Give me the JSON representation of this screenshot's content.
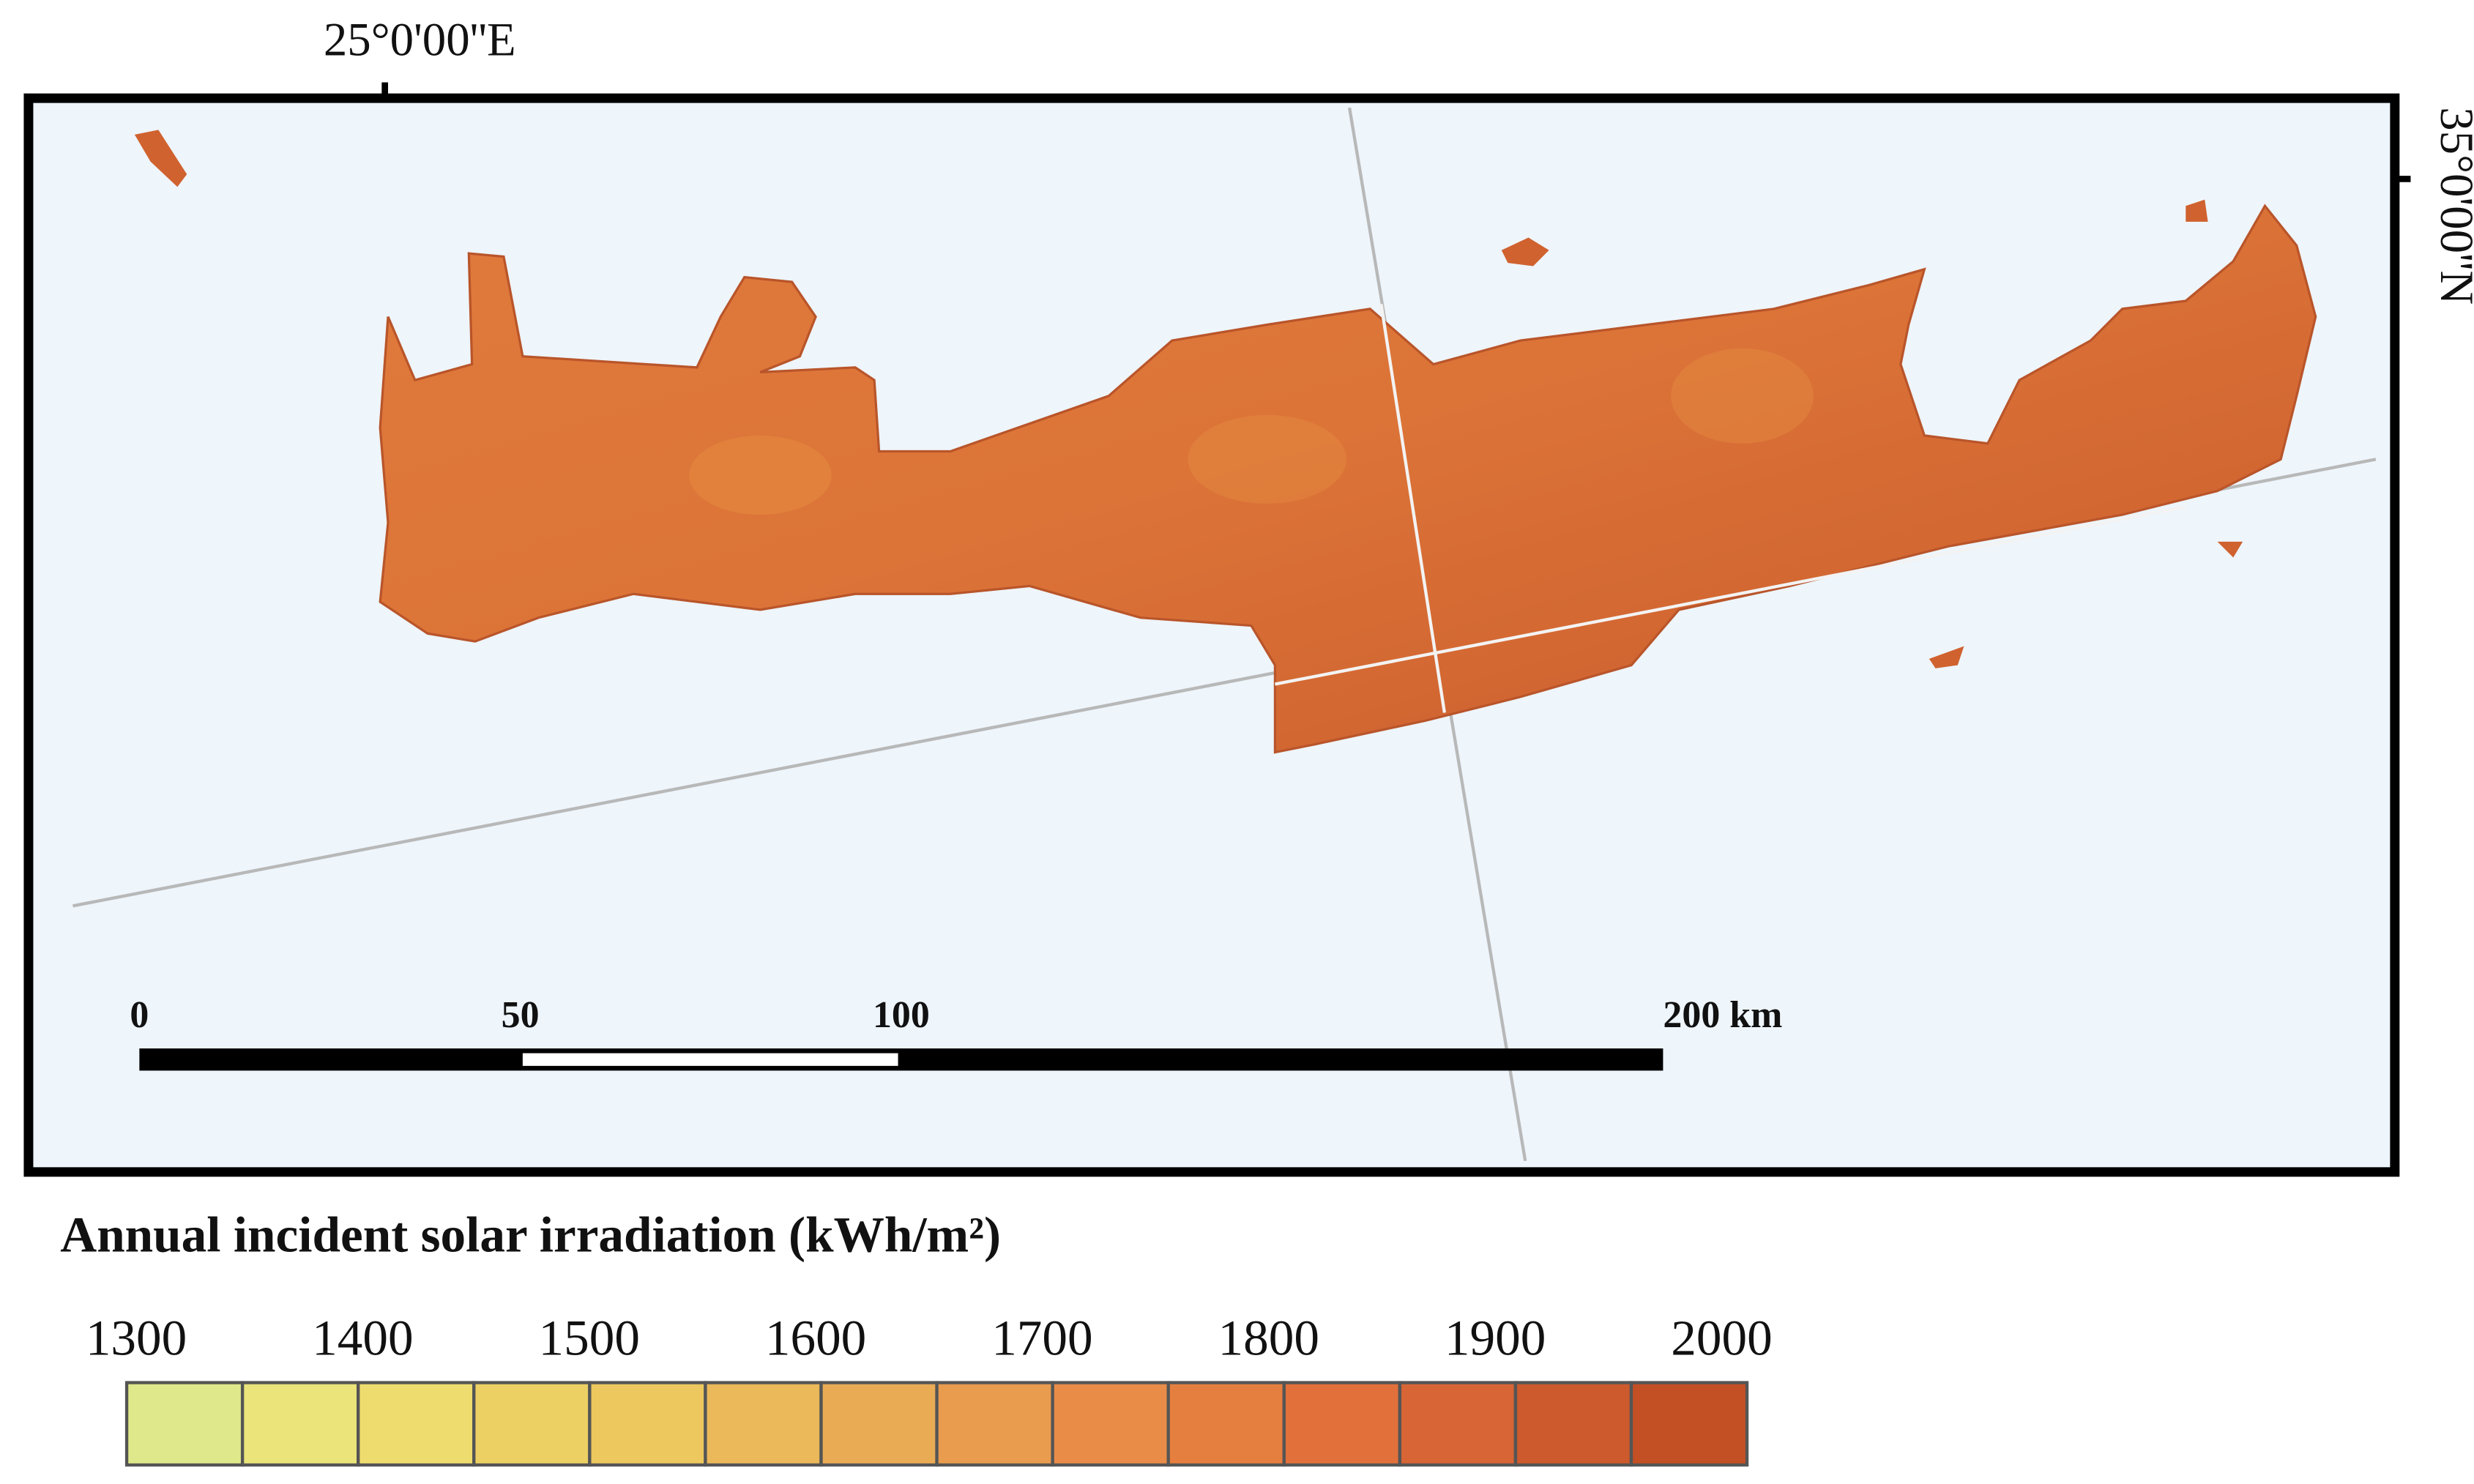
{
  "map": {
    "longitude_label": "25°0'00''E",
    "latitude_label": "35°0'00''N",
    "scale_bar": {
      "ticks": [
        0,
        50,
        100,
        {
          "value": 200,
          "label": "200 km"
        }
      ]
    },
    "legend": {
      "title": "Annual incident solar irradiation (kWh/m²)",
      "ticks": [
        1300,
        1400,
        1500,
        1600,
        1700,
        1800,
        1900,
        2000
      ],
      "colors": [
        "#dfe88a",
        "#eae47a",
        "#efdc6e",
        "#ecd063",
        "#ecc85e",
        "#ebb85a",
        "#eaab55",
        "#e99b4e",
        "#e98c48",
        "#e57f3f",
        "#e2703a",
        "#d76535",
        "#cc5a2d",
        "#c34f25"
      ]
    }
  }
}
